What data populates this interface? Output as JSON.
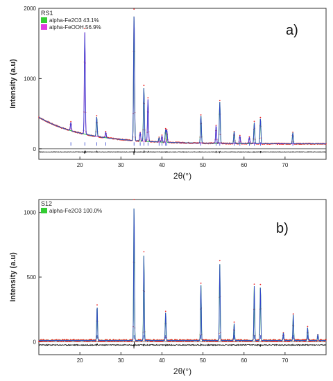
{
  "chart_data": [
    {
      "type": "line",
      "panel_label": "a)",
      "sample_label": "RS1",
      "xlabel": "2θ(°)",
      "ylabel": "Intensity (a.u)",
      "xlim": [
        10,
        80
      ],
      "ylim": [
        -150,
        2000
      ],
      "x_ticks": [
        20,
        30,
        40,
        50,
        60,
        70
      ],
      "y_ticks": [
        0,
        1000,
        2000
      ],
      "legend": [
        {
          "label": "alpha-Fe2O3 43.1%",
          "color": "#33cc33"
        },
        {
          "label": "alpha-FeOOH 56.9%",
          "color": "#e03ce0"
        }
      ],
      "background": {
        "start": 450,
        "decay": 0.09,
        "floor": 70
      },
      "difference_offset": -45,
      "peaks": [
        {
          "x": 17.8,
          "y": 120,
          "phase": "FeOOH"
        },
        {
          "x": 21.2,
          "y": 1450,
          "phase": "FeOOH"
        },
        {
          "x": 24.1,
          "y": 280,
          "phase": "Fe2O3"
        },
        {
          "x": 26.3,
          "y": 80,
          "phase": "FeOOH"
        },
        {
          "x": 33.2,
          "y": 1800,
          "phase": "mixed"
        },
        {
          "x": 34.7,
          "y": 120,
          "phase": "FeOOH"
        },
        {
          "x": 35.6,
          "y": 760,
          "phase": "Fe2O3"
        },
        {
          "x": 36.6,
          "y": 600,
          "phase": "FeOOH"
        },
        {
          "x": 39.3,
          "y": 60,
          "phase": "Fe2O3"
        },
        {
          "x": 40.0,
          "y": 90,
          "phase": "FeOOH"
        },
        {
          "x": 40.9,
          "y": 180,
          "phase": "Fe2O3"
        },
        {
          "x": 41.2,
          "y": 170,
          "phase": "FeOOH"
        },
        {
          "x": 49.5,
          "y": 390,
          "phase": "Fe2O3"
        },
        {
          "x": 53.2,
          "y": 250,
          "phase": "FeOOH"
        },
        {
          "x": 54.1,
          "y": 590,
          "phase": "Fe2O3"
        },
        {
          "x": 57.6,
          "y": 170,
          "phase": "Fe2O3"
        },
        {
          "x": 59.0,
          "y": 110,
          "phase": "FeOOH"
        },
        {
          "x": 61.3,
          "y": 90,
          "phase": "FeOOH"
        },
        {
          "x": 62.5,
          "y": 300,
          "phase": "Fe2O3"
        },
        {
          "x": 64.0,
          "y": 360,
          "phase": "Fe2O3"
        },
        {
          "x": 71.9,
          "y": 160,
          "phase": "Fe2O3"
        }
      ]
    },
    {
      "type": "line",
      "panel_label": "b)",
      "sample_label": "S12",
      "xlabel": "2θ(°)",
      "ylabel": "Intensity (a.u)",
      "xlim": [
        10,
        80
      ],
      "ylim": [
        -100,
        1100
      ],
      "x_ticks": [
        20,
        30,
        40,
        50,
        60,
        70
      ],
      "y_ticks": [
        0,
        500,
        1000
      ],
      "legend": [
        {
          "label": "alpha-Fe2O3 100.0%",
          "color": "#33cc33"
        }
      ],
      "background": {
        "start": 10,
        "decay": 0.0,
        "floor": 10
      },
      "difference_offset": -25,
      "peaks": [
        {
          "x": 24.2,
          "y": 270,
          "phase": "Fe2O3"
        },
        {
          "x": 33.2,
          "y": 1050,
          "phase": "Fe2O3"
        },
        {
          "x": 35.6,
          "y": 660,
          "phase": "Fe2O3"
        },
        {
          "x": 40.9,
          "y": 220,
          "phase": "Fe2O3"
        },
        {
          "x": 49.5,
          "y": 430,
          "phase": "Fe2O3"
        },
        {
          "x": 54.1,
          "y": 590,
          "phase": "Fe2O3"
        },
        {
          "x": 57.6,
          "y": 130,
          "phase": "Fe2O3"
        },
        {
          "x": 62.5,
          "y": 420,
          "phase": "Fe2O3"
        },
        {
          "x": 64.0,
          "y": 420,
          "phase": "Fe2O3"
        },
        {
          "x": 69.6,
          "y": 60,
          "phase": "Fe2O3"
        },
        {
          "x": 72.0,
          "y": 200,
          "phase": "Fe2O3"
        },
        {
          "x": 75.5,
          "y": 100,
          "phase": "Fe2O3"
        },
        {
          "x": 78.0,
          "y": 50,
          "phase": "Fe2O3"
        }
      ]
    }
  ],
  "colors": {
    "observed": "#ee2222",
    "fe2o3": "#33cc33",
    "feooh": "#e03ce0",
    "calc": "#3344cc",
    "difference": "#111111",
    "axis": "#333333"
  }
}
